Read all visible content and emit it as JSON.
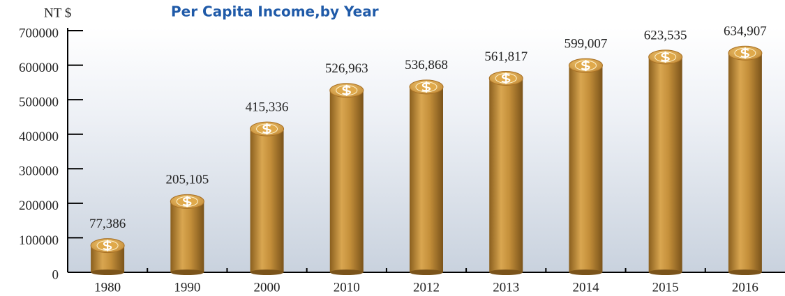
{
  "chart_data": {
    "type": "bar",
    "title": "Per Capita Income,by Year",
    "y_label": "NT $",
    "categories": [
      "1980",
      "1990",
      "2000",
      "2010",
      "2012",
      "2013",
      "2014",
      "2015",
      "2016"
    ],
    "values": [
      77386,
      205105,
      415336,
      526963,
      536868,
      561817,
      599007,
      623535,
      634907
    ],
    "value_labels": [
      "77,386",
      "205,105",
      "415,336",
      "526,963",
      "536,868",
      "561,817",
      "599,007",
      "623,535",
      "634,907"
    ],
    "color": "#c8913a",
    "ylim": [
      0,
      700000
    ],
    "yticks": [
      0,
      100000,
      200000,
      300000,
      400000,
      500000,
      600000,
      700000
    ]
  }
}
